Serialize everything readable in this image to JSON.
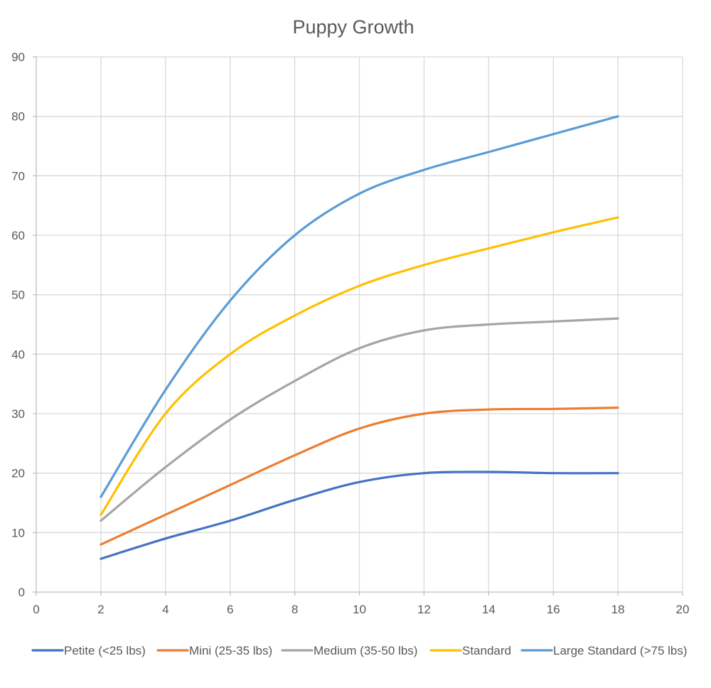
{
  "chart_data": {
    "type": "line",
    "title": "Puppy Growth",
    "xlabel": "",
    "ylabel": "",
    "xlim": [
      0,
      20
    ],
    "ylim": [
      0,
      90
    ],
    "xticks": [
      0,
      2,
      4,
      6,
      8,
      10,
      12,
      14,
      16,
      18,
      20
    ],
    "yticks": [
      0,
      10,
      20,
      30,
      40,
      50,
      60,
      70,
      80,
      90
    ],
    "grid": true,
    "smooth": true,
    "legend_position": "bottom",
    "x": [
      2,
      4,
      6,
      8,
      10,
      12,
      14,
      16,
      18
    ],
    "series": [
      {
        "name": "Petite (<25 lbs)",
        "color": "#4472c4",
        "values": [
          5.6,
          9,
          12,
          15.5,
          18.5,
          20,
          20.2,
          20,
          20
        ]
      },
      {
        "name": "Mini (25-35 lbs)",
        "color": "#ed7d31",
        "values": [
          8,
          13,
          18,
          23,
          27.5,
          30,
          30.7,
          30.8,
          31
        ]
      },
      {
        "name": "Medium (35-50 lbs)",
        "color": "#a5a5a5",
        "values": [
          12,
          21,
          29,
          35.5,
          41,
          44,
          45,
          45.5,
          46
        ]
      },
      {
        "name": "Standard",
        "color": "#ffc000",
        "values": [
          13,
          30,
          40,
          46.5,
          51.5,
          55,
          57.8,
          60.5,
          63
        ]
      },
      {
        "name": "Large Standard (>75 lbs)",
        "color": "#5b9bd5",
        "values": [
          16,
          34,
          49,
          60,
          67,
          71,
          74,
          77,
          80
        ]
      }
    ]
  }
}
